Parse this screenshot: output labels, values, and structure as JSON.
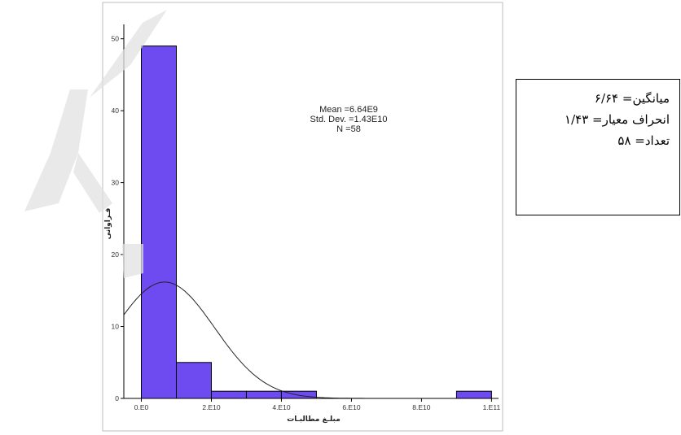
{
  "chart_data": {
    "type": "bar",
    "subtype": "histogram",
    "xlabel": "مبلـغ مطالبـات",
    "ylabel": "فـراوانی",
    "xlim": [
      -5000000000,
      102000000000
    ],
    "ylim": [
      0,
      52
    ],
    "x_ticks": [
      {
        "value": 0,
        "label": "0.E0"
      },
      {
        "value": 20000000000,
        "label": "2.E10"
      },
      {
        "value": 40000000000,
        "label": "4.E10"
      },
      {
        "value": 60000000000,
        "label": "6.E10"
      },
      {
        "value": 80000000000,
        "label": "8.E10"
      },
      {
        "value": 100000000000,
        "label": "1.E11"
      }
    ],
    "y_ticks": [
      0,
      10,
      20,
      30,
      40,
      50
    ],
    "bins": [
      {
        "start": 0,
        "end": 10000000000,
        "count": 49
      },
      {
        "start": 10000000000,
        "end": 20000000000,
        "count": 5
      },
      {
        "start": 20000000000,
        "end": 30000000000,
        "count": 1
      },
      {
        "start": 30000000000,
        "end": 40000000000,
        "count": 1
      },
      {
        "start": 40000000000,
        "end": 50000000000,
        "count": 1
      },
      {
        "start": 90000000000,
        "end": 100000000000,
        "count": 1
      }
    ],
    "normal_curve": {
      "mean": 6640000000,
      "std": 14300000000,
      "n": 58,
      "bin_width": 10000000000
    },
    "annotation": [
      "Mean =6.64E9",
      "Std. Dev. =1.43E10",
      "N =58"
    ],
    "bar_color": "#6d4bf0",
    "bar_stroke": "#000000",
    "grid": false
  },
  "stats_box": {
    "lines": [
      "میانگین= ۶/۶۴",
      "انحراف معیار= ۱/۴۳",
      "تعداد= ۵۸"
    ]
  }
}
